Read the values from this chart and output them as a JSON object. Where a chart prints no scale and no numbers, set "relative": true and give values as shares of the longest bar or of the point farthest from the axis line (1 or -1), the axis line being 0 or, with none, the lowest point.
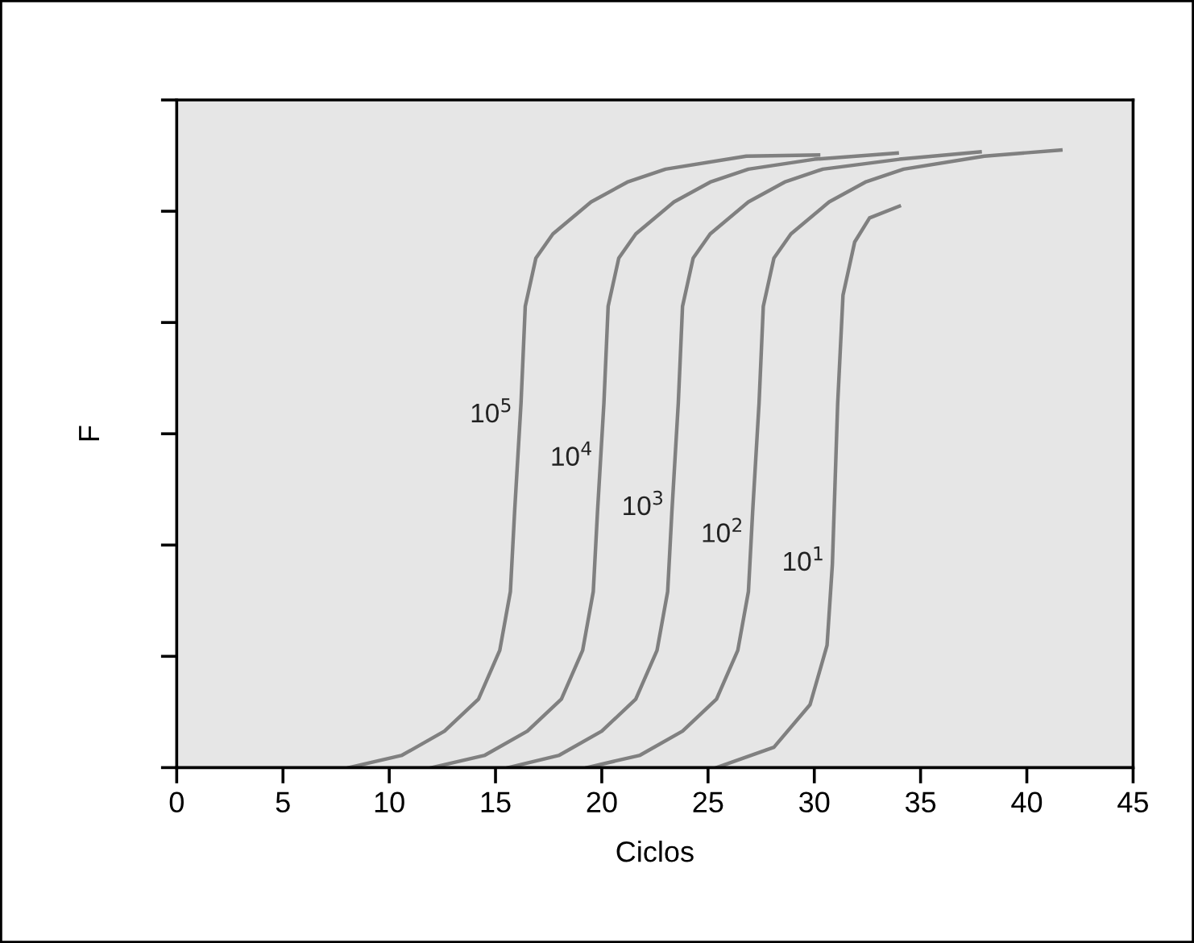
{
  "chart_data": {
    "type": "line",
    "xlabel": "Ciclos",
    "ylabel": "F",
    "relative": true,
    "xlim": [
      0,
      45
    ],
    "xticks": [
      0,
      5,
      10,
      15,
      20,
      25,
      30,
      35,
      40,
      45
    ],
    "grid": false,
    "legend": false,
    "tick_labels": "x",
    "marker": "none",
    "line_style": "solid",
    "series": [
      {
        "name": "10$^{5}$",
        "color": "#808080",
        "x": [
          8.1,
          10.6,
          12.6,
          14.2,
          15.2,
          15.7,
          15.9,
          16.2,
          16.4,
          16.9,
          17.7,
          19.5,
          21.2,
          23.0,
          26.8,
          30.2
        ],
        "values": [
          0,
          0.02,
          0.059,
          0.111,
          0.19,
          0.285,
          0.415,
          0.59,
          0.747,
          0.825,
          0.864,
          0.916,
          0.948,
          0.969,
          0.99,
          0.992
        ]
      },
      {
        "name": "10$^{4}$",
        "color": "#808080",
        "x": [
          12.0,
          14.5,
          16.5,
          18.1,
          19.1,
          19.6,
          19.8,
          20.1,
          20.3,
          20.8,
          21.6,
          23.4,
          25.1,
          26.9,
          30.0,
          33.9
        ],
        "values": [
          0,
          0.02,
          0.059,
          0.111,
          0.19,
          0.285,
          0.415,
          0.59,
          0.747,
          0.825,
          0.864,
          0.916,
          0.948,
          0.969,
          0.985,
          0.995
        ]
      },
      {
        "name": "10$^{3}$",
        "color": "#808080",
        "x": [
          15.6,
          18.0,
          20.0,
          21.6,
          22.6,
          23.1,
          23.3,
          23.6,
          23.8,
          24.3,
          25.1,
          26.9,
          28.6,
          30.4,
          34.0,
          37.8
        ],
        "values": [
          0,
          0.02,
          0.059,
          0.111,
          0.19,
          0.285,
          0.415,
          0.59,
          0.747,
          0.825,
          0.864,
          0.916,
          0.948,
          0.969,
          0.985,
          0.997
        ]
      },
      {
        "name": "10$^{2}$",
        "color": "#808080",
        "x": [
          19.3,
          21.8,
          23.8,
          25.4,
          26.4,
          26.9,
          27.1,
          27.4,
          27.6,
          28.1,
          28.9,
          30.7,
          32.4,
          34.2,
          38.0,
          41.6
        ],
        "values": [
          0,
          0.02,
          0.059,
          0.111,
          0.19,
          0.285,
          0.415,
          0.59,
          0.747,
          0.825,
          0.864,
          0.916,
          0.948,
          0.969,
          0.99,
          1
        ]
      },
      {
        "name": "10$^{1}$",
        "color": "#808080",
        "x": [
          25.4,
          28.1,
          29.8,
          30.6,
          30.85,
          31.1,
          31.35,
          31.9,
          32.6,
          34.0
        ],
        "values": [
          0,
          0.033,
          0.102,
          0.198,
          0.329,
          0.59,
          0.765,
          0.851,
          0.89,
          0.909
        ]
      }
    ]
  }
}
